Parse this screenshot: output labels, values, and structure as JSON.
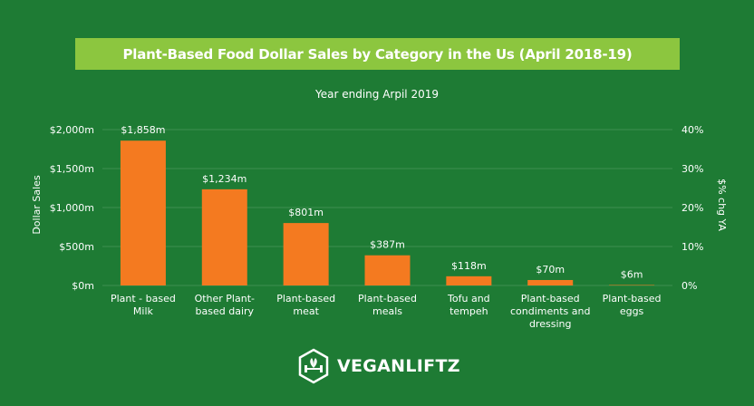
{
  "title": "Plant-Based Food Dollar Sales by Category in the Us (April 2018-19)",
  "subtitle": "Year ending Arpil 2019",
  "brand": {
    "name": "VEGANLIFTZ",
    "logo_icon": "hexagon-plant-dumbbell-icon"
  },
  "colors": {
    "background": "#1e7b34",
    "title_bar": "#8cc63f",
    "bar": "#f47a20",
    "grid": "#3d8f4f"
  },
  "chart_data": {
    "type": "bar",
    "categories": [
      [
        "Plant - based",
        "Milk"
      ],
      [
        "Other Plant-",
        "based dairy"
      ],
      [
        "Plant-based",
        "meat"
      ],
      [
        "Plant-based",
        "meals"
      ],
      [
        "Tofu and",
        "tempeh"
      ],
      [
        "Plant-based",
        "condiments and",
        "dressing"
      ],
      [
        "Plant-based",
        "eggs"
      ]
    ],
    "values": [
      1858,
      1234,
      801,
      387,
      118,
      70,
      6
    ],
    "value_labels": [
      "$1,858m",
      "$1,234m",
      "$801m",
      "$387m",
      "$118m",
      "$70m",
      "$6m"
    ],
    "ylabel": "Dollar Sales",
    "y2label": "$% chg YA",
    "ylim": [
      0,
      2000
    ],
    "yticks": [
      {
        "value": 0,
        "label": "$0m"
      },
      {
        "value": 500,
        "label": "$500m"
      },
      {
        "value": 1000,
        "label": "$1,000m"
      },
      {
        "value": 1500,
        "label": "$1,500m"
      },
      {
        "value": 2000,
        "label": "$2,000m"
      }
    ],
    "y2lim": [
      0,
      40
    ],
    "y2ticks": [
      {
        "value": 0,
        "label": "0%"
      },
      {
        "value": 10,
        "label": "10%"
      },
      {
        "value": 20,
        "label": "20%"
      },
      {
        "value": 30,
        "label": "30%"
      },
      {
        "value": 40,
        "label": "40%"
      }
    ],
    "grid": true
  }
}
